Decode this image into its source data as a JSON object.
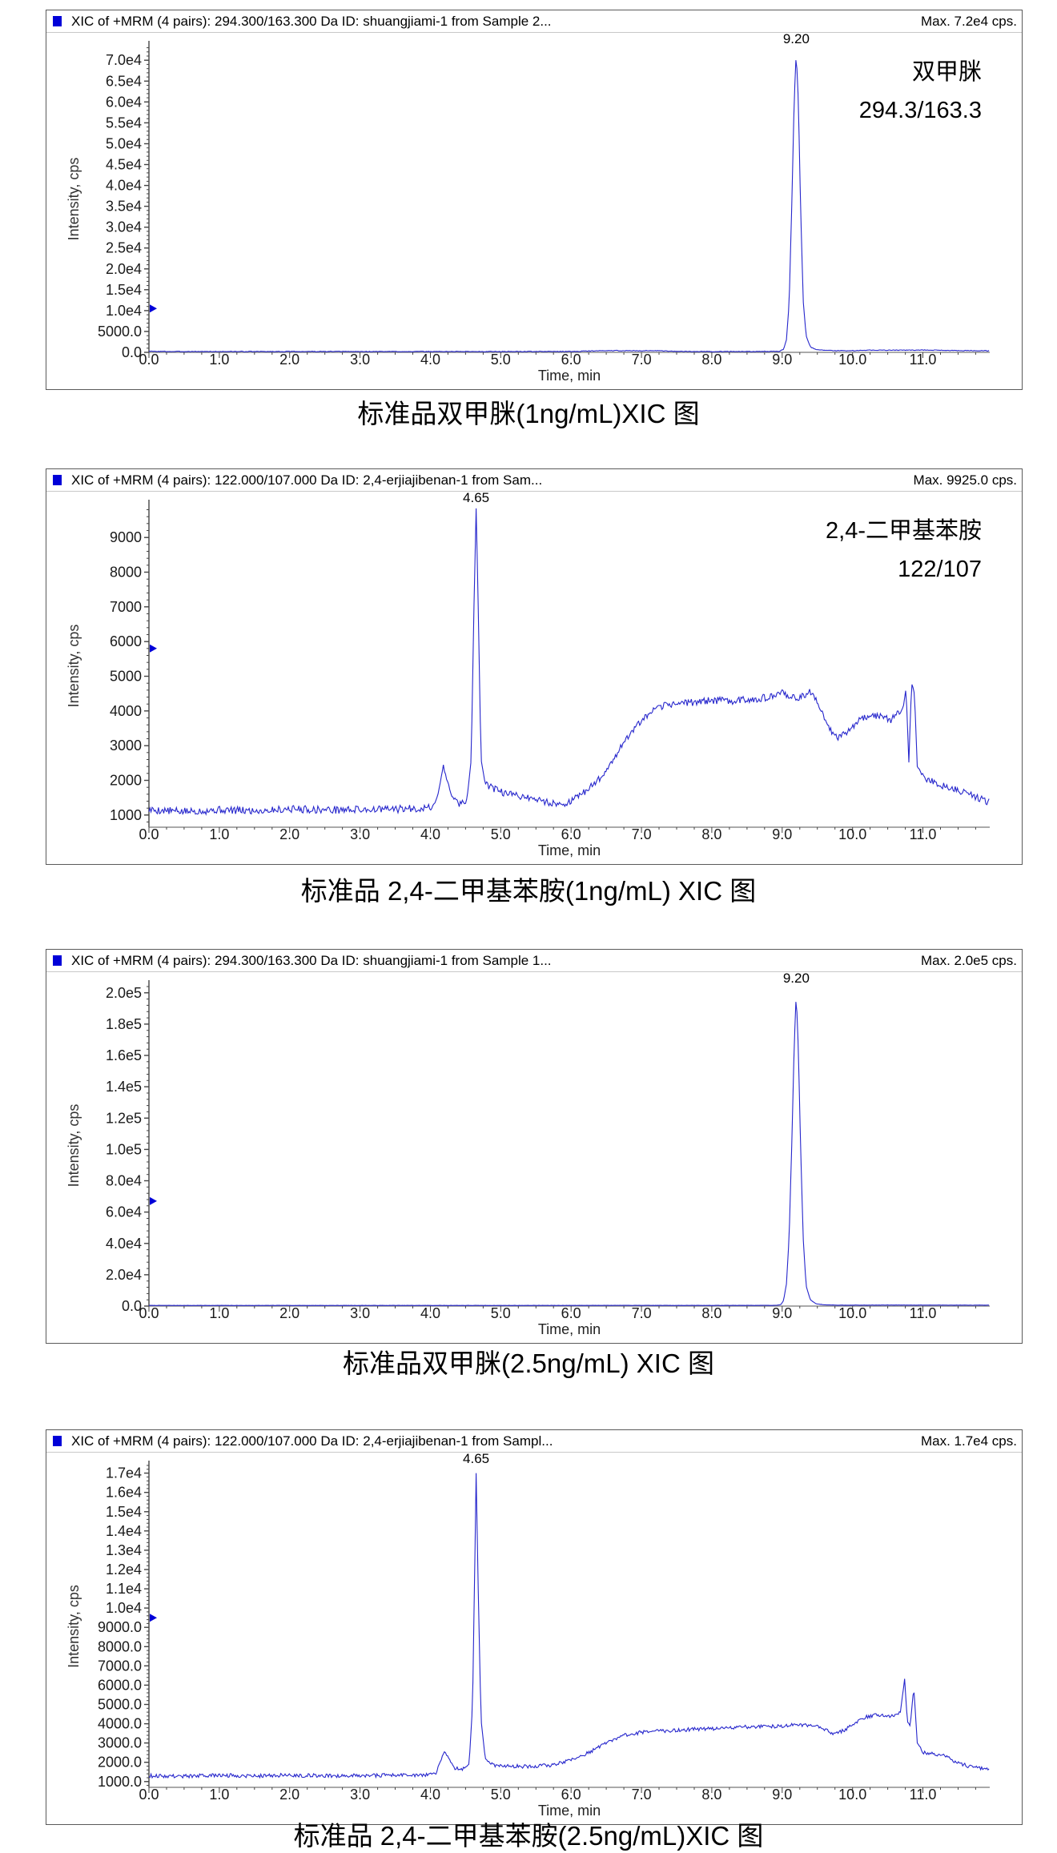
{
  "chart_data": [
    {
      "type": "line",
      "title": "XIC of +MRM (4 pairs): 294.300/163.300 Da ID: shuangjiami-1 from Sample 2...",
      "max_label": "Max. 7.2e4 cps.",
      "caption": "标准品双甲脒(1ng/mL)XIC 图",
      "annotation_lines": [
        "双甲脒",
        "294.3/163.3"
      ],
      "peak": {
        "label": "9.20",
        "time": 9.2,
        "intensity": 72000
      },
      "xlabel": "Time, min",
      "ylabel": "Intensity, cps",
      "xlim": [
        0,
        11.95
      ],
      "ylim": [
        0,
        73500
      ],
      "x_ticks": [
        {
          "v": 0,
          "label": "0.0"
        },
        {
          "v": 1,
          "label": "1.0"
        },
        {
          "v": 2,
          "label": "2.0"
        },
        {
          "v": 3,
          "label": "3.0"
        },
        {
          "v": 4,
          "label": "4.0"
        },
        {
          "v": 5,
          "label": "5.0"
        },
        {
          "v": 6,
          "label": "6.0"
        },
        {
          "v": 7,
          "label": "7.0"
        },
        {
          "v": 8,
          "label": "8.0"
        },
        {
          "v": 9,
          "label": "9.0"
        },
        {
          "v": 10,
          "label": "10.0"
        },
        {
          "v": 11,
          "label": "11.0"
        }
      ],
      "y_ticks": [
        {
          "v": 0,
          "label": "0.0"
        },
        {
          "v": 5000,
          "label": "5000.0"
        },
        {
          "v": 10000,
          "label": "1.0e4"
        },
        {
          "v": 15000,
          "label": "1.5e4"
        },
        {
          "v": 20000,
          "label": "2.0e4"
        },
        {
          "v": 25000,
          "label": "2.5e4"
        },
        {
          "v": 30000,
          "label": "3.0e4"
        },
        {
          "v": 35000,
          "label": "3.5e4"
        },
        {
          "v": 40000,
          "label": "4.0e4"
        },
        {
          "v": 45000,
          "label": "4.5e4"
        },
        {
          "v": 50000,
          "label": "5.0e4"
        },
        {
          "v": 55000,
          "label": "5.5e4"
        },
        {
          "v": 60000,
          "label": "6.0e4"
        },
        {
          "v": 65000,
          "label": "6.5e4"
        },
        {
          "v": 70000,
          "label": "7.0e4"
        }
      ],
      "marker_intensity": 10500,
      "trace_color": "#2626cc",
      "noise_cps": 80,
      "seed": 3,
      "keypoints": [
        [
          0,
          250
        ],
        [
          0.3,
          200
        ],
        [
          1,
          200
        ],
        [
          2,
          200
        ],
        [
          3,
          200
        ],
        [
          4,
          200
        ],
        [
          5,
          200
        ],
        [
          6,
          220
        ],
        [
          6.3,
          350
        ],
        [
          6.6,
          420
        ],
        [
          6.9,
          380
        ],
        [
          7.2,
          420
        ],
        [
          7.4,
          250
        ],
        [
          8,
          200
        ],
        [
          8.6,
          200
        ],
        [
          8.95,
          250
        ],
        [
          9.02,
          700
        ],
        [
          9.06,
          3000
        ],
        [
          9.1,
          12000
        ],
        [
          9.14,
          38000
        ],
        [
          9.17,
          60000
        ],
        [
          9.2,
          72000
        ],
        [
          9.23,
          60000
        ],
        [
          9.26,
          36000
        ],
        [
          9.3,
          12000
        ],
        [
          9.34,
          4000
        ],
        [
          9.4,
          1300
        ],
        [
          9.5,
          600
        ],
        [
          9.7,
          420
        ],
        [
          10,
          400
        ],
        [
          10.3,
          550
        ],
        [
          10.6,
          500
        ],
        [
          11,
          550
        ],
        [
          11.3,
          480
        ],
        [
          11.6,
          420
        ],
        [
          11.9,
          380
        ]
      ]
    },
    {
      "type": "line",
      "title": "XIC of +MRM (4 pairs): 122.000/107.000 Da ID: 2,4-erjiajibenan-1 from Sam...",
      "max_label": "Max. 9925.0 cps.",
      "caption": "标准品 2,4-二甲基苯胺(1ng/mL) XIC 图",
      "annotation_lines": [
        "2,4-二甲基苯胺",
        "122/107"
      ],
      "peak": {
        "label": "4.65",
        "time": 4.65,
        "intensity": 9925
      },
      "xlabel": "Time, min",
      "ylabel": "Intensity, cps",
      "xlim": [
        0,
        11.95
      ],
      "ylim": [
        650,
        9950
      ],
      "x_ticks": [
        {
          "v": 0,
          "label": "0.0"
        },
        {
          "v": 1,
          "label": "1.0"
        },
        {
          "v": 2,
          "label": "2.0"
        },
        {
          "v": 3,
          "label": "3.0"
        },
        {
          "v": 4,
          "label": "4.0"
        },
        {
          "v": 5,
          "label": "5.0"
        },
        {
          "v": 6,
          "label": "6.0"
        },
        {
          "v": 7,
          "label": "7.0"
        },
        {
          "v": 8,
          "label": "8.0"
        },
        {
          "v": 9,
          "label": "9.0"
        },
        {
          "v": 10,
          "label": "10.0"
        },
        {
          "v": 11,
          "label": "11.0"
        }
      ],
      "y_ticks": [
        {
          "v": 1000,
          "label": "1000"
        },
        {
          "v": 2000,
          "label": "2000"
        },
        {
          "v": 3000,
          "label": "3000"
        },
        {
          "v": 4000,
          "label": "4000"
        },
        {
          "v": 5000,
          "label": "5000"
        },
        {
          "v": 6000,
          "label": "6000"
        },
        {
          "v": 7000,
          "label": "7000"
        },
        {
          "v": 8000,
          "label": "8000"
        },
        {
          "v": 9000,
          "label": "9000"
        }
      ],
      "marker_intensity": 5800,
      "trace_color": "#2626cc",
      "noise_cps": 110,
      "seed": 5,
      "keypoints": [
        [
          0,
          1150
        ],
        [
          0.5,
          1100
        ],
        [
          1,
          1150
        ],
        [
          1.5,
          1120
        ],
        [
          2,
          1180
        ],
        [
          2.5,
          1150
        ],
        [
          3,
          1160
        ],
        [
          3.5,
          1170
        ],
        [
          3.9,
          1200
        ],
        [
          4.05,
          1250
        ],
        [
          4.12,
          1700
        ],
        [
          4.18,
          2400
        ],
        [
          4.25,
          1900
        ],
        [
          4.32,
          1500
        ],
        [
          4.42,
          1300
        ],
        [
          4.52,
          1450
        ],
        [
          4.58,
          2600
        ],
        [
          4.62,
          7000
        ],
        [
          4.65,
          9925
        ],
        [
          4.68,
          7000
        ],
        [
          4.72,
          2600
        ],
        [
          4.78,
          1900
        ],
        [
          4.9,
          1750
        ],
        [
          5.1,
          1600
        ],
        [
          5.3,
          1550
        ],
        [
          5.6,
          1400
        ],
        [
          5.85,
          1300
        ],
        [
          6,
          1400
        ],
        [
          6.15,
          1600
        ],
        [
          6.3,
          1850
        ],
        [
          6.45,
          2150
        ],
        [
          6.6,
          2600
        ],
        [
          6.75,
          3100
        ],
        [
          6.9,
          3500
        ],
        [
          7.05,
          3800
        ],
        [
          7.2,
          4050
        ],
        [
          7.4,
          4200
        ],
        [
          7.7,
          4250
        ],
        [
          8,
          4300
        ],
        [
          8.3,
          4300
        ],
        [
          8.6,
          4350
        ],
        [
          8.9,
          4400
        ],
        [
          9,
          4600
        ],
        [
          9.1,
          4350
        ],
        [
          9.25,
          4400
        ],
        [
          9.4,
          4550
        ],
        [
          9.5,
          4250
        ],
        [
          9.6,
          3800
        ],
        [
          9.7,
          3400
        ],
        [
          9.8,
          3250
        ],
        [
          9.95,
          3450
        ],
        [
          10.1,
          3750
        ],
        [
          10.25,
          3900
        ],
        [
          10.4,
          3850
        ],
        [
          10.55,
          3750
        ],
        [
          10.65,
          3950
        ],
        [
          10.72,
          4100
        ],
        [
          10.76,
          4650
        ],
        [
          10.8,
          2600
        ],
        [
          10.84,
          4800
        ],
        [
          10.88,
          4500
        ],
        [
          10.92,
          2400
        ],
        [
          11,
          2100
        ],
        [
          11.15,
          1950
        ],
        [
          11.35,
          1800
        ],
        [
          11.6,
          1650
        ],
        [
          11.9,
          1400
        ]
      ]
    },
    {
      "type": "line",
      "title": "XIC of +MRM (4 pairs): 294.300/163.300 Da ID: shuangjiami-1 from Sample 1...",
      "max_label": "Max. 2.0e5 cps.",
      "caption": "标准品双甲脒(2.5ng/mL) XIC 图",
      "annotation_lines": [],
      "peak": {
        "label": "9.20",
        "time": 9.2,
        "intensity": 200000
      },
      "xlabel": "Time, min",
      "ylabel": "Intensity, cps",
      "xlim": [
        0,
        11.95
      ],
      "ylim": [
        0,
        205000
      ],
      "x_ticks": [
        {
          "v": 0,
          "label": "0.0"
        },
        {
          "v": 1,
          "label": "1.0"
        },
        {
          "v": 2,
          "label": "2.0"
        },
        {
          "v": 3,
          "label": "3.0"
        },
        {
          "v": 4,
          "label": "4.0"
        },
        {
          "v": 5,
          "label": "5.0"
        },
        {
          "v": 6,
          "label": "6.0"
        },
        {
          "v": 7,
          "label": "7.0"
        },
        {
          "v": 8,
          "label": "8.0"
        },
        {
          "v": 9,
          "label": "9.0"
        },
        {
          "v": 10,
          "label": "10.0"
        },
        {
          "v": 11,
          "label": "11.0"
        }
      ],
      "y_ticks": [
        {
          "v": 0,
          "label": "0.0"
        },
        {
          "v": 20000,
          "label": "2.0e4"
        },
        {
          "v": 40000,
          "label": "4.0e4"
        },
        {
          "v": 60000,
          "label": "6.0e4"
        },
        {
          "v": 80000,
          "label": "8.0e4"
        },
        {
          "v": 100000,
          "label": "1.0e5"
        },
        {
          "v": 120000,
          "label": "1.2e5"
        },
        {
          "v": 140000,
          "label": "1.4e5"
        },
        {
          "v": 160000,
          "label": "1.6e5"
        },
        {
          "v": 180000,
          "label": "1.8e5"
        },
        {
          "v": 200000,
          "label": "2.0e5"
        }
      ],
      "marker_intensity": 67000,
      "trace_color": "#2626cc",
      "noise_cps": 60,
      "seed": 7,
      "keypoints": [
        [
          0,
          400
        ],
        [
          1,
          400
        ],
        [
          2,
          400
        ],
        [
          3,
          400
        ],
        [
          4,
          400
        ],
        [
          5,
          400
        ],
        [
          6,
          420
        ],
        [
          6.5,
          450
        ],
        [
          7,
          430
        ],
        [
          8,
          420
        ],
        [
          8.9,
          450
        ],
        [
          8.98,
          900
        ],
        [
          9.02,
          3500
        ],
        [
          9.06,
          14000
        ],
        [
          9.1,
          45000
        ],
        [
          9.14,
          110000
        ],
        [
          9.17,
          165000
        ],
        [
          9.2,
          200000
        ],
        [
          9.23,
          163000
        ],
        [
          9.26,
          105000
        ],
        [
          9.3,
          42000
        ],
        [
          9.34,
          13000
        ],
        [
          9.4,
          4000
        ],
        [
          9.48,
          1500
        ],
        [
          9.6,
          800
        ],
        [
          9.8,
          600
        ],
        [
          10.2,
          600
        ],
        [
          10.6,
          650
        ],
        [
          11,
          620
        ],
        [
          11.5,
          600
        ],
        [
          11.9,
          580
        ]
      ]
    },
    {
      "type": "line",
      "title": "XIC of +MRM (4 pairs): 122.000/107.000 Da ID: 2,4-erjiajibenan-1 from Sampl...",
      "max_label": "Max. 1.7e4 cps.",
      "caption": "标准品 2,4-二甲基苯胺(2.5ng/mL)XIC 图",
      "annotation_lines": [],
      "peak": {
        "label": "4.65",
        "time": 4.65,
        "intensity": 17000
      },
      "xlabel": "Time, min",
      "ylabel": "Intensity, cps",
      "xlim": [
        0,
        11.95
      ],
      "ylim": [
        700,
        17400
      ],
      "x_ticks": [
        {
          "v": 0,
          "label": "0.0"
        },
        {
          "v": 1,
          "label": "1.0"
        },
        {
          "v": 2,
          "label": "2.0"
        },
        {
          "v": 3,
          "label": "3.0"
        },
        {
          "v": 4,
          "label": "4.0"
        },
        {
          "v": 5,
          "label": "5.0"
        },
        {
          "v": 6,
          "label": "6.0"
        },
        {
          "v": 7,
          "label": "7.0"
        },
        {
          "v": 8,
          "label": "8.0"
        },
        {
          "v": 9,
          "label": "9.0"
        },
        {
          "v": 10,
          "label": "10.0"
        },
        {
          "v": 11,
          "label": "11.0"
        }
      ],
      "y_ticks": [
        {
          "v": 1000,
          "label": "1000.0"
        },
        {
          "v": 2000,
          "label": "2000.0"
        },
        {
          "v": 3000,
          "label": "3000.0"
        },
        {
          "v": 4000,
          "label": "4000.0"
        },
        {
          "v": 5000,
          "label": "5000.0"
        },
        {
          "v": 6000,
          "label": "6000.0"
        },
        {
          "v": 7000,
          "label": "7000.0"
        },
        {
          "v": 8000,
          "label": "8000.0"
        },
        {
          "v": 9000,
          "label": "9000.0"
        },
        {
          "v": 10000,
          "label": "1.0e4"
        },
        {
          "v": 11000,
          "label": "1.1e4"
        },
        {
          "v": 12000,
          "label": "1.2e4"
        },
        {
          "v": 13000,
          "label": "1.3e4"
        },
        {
          "v": 14000,
          "label": "1.4e4"
        },
        {
          "v": 15000,
          "label": "1.5e4"
        },
        {
          "v": 16000,
          "label": "1.6e4"
        },
        {
          "v": 17000,
          "label": "1.7e4"
        }
      ],
      "marker_intensity": 9500,
      "trace_color": "#2626cc",
      "noise_cps": 100,
      "seed": 9,
      "keypoints": [
        [
          0,
          1300
        ],
        [
          0.5,
          1280
        ],
        [
          1,
          1320
        ],
        [
          1.5,
          1300
        ],
        [
          2,
          1330
        ],
        [
          2.5,
          1300
        ],
        [
          3,
          1320
        ],
        [
          3.5,
          1330
        ],
        [
          3.95,
          1350
        ],
        [
          4.08,
          1450
        ],
        [
          4.15,
          2100
        ],
        [
          4.2,
          2600
        ],
        [
          4.27,
          2100
        ],
        [
          4.35,
          1700
        ],
        [
          4.45,
          1650
        ],
        [
          4.55,
          1900
        ],
        [
          4.6,
          5000
        ],
        [
          4.63,
          12000
        ],
        [
          4.65,
          17000
        ],
        [
          4.68,
          11000
        ],
        [
          4.72,
          4200
        ],
        [
          4.78,
          2200
        ],
        [
          4.9,
          1850
        ],
        [
          5.1,
          1800
        ],
        [
          5.4,
          1780
        ],
        [
          5.7,
          1850
        ],
        [
          5.95,
          2050
        ],
        [
          6.1,
          2250
        ],
        [
          6.3,
          2600
        ],
        [
          6.5,
          3000
        ],
        [
          6.7,
          3350
        ],
        [
          6.9,
          3500
        ],
        [
          7.1,
          3600
        ],
        [
          7.4,
          3650
        ],
        [
          7.7,
          3700
        ],
        [
          8,
          3750
        ],
        [
          8.3,
          3800
        ],
        [
          8.6,
          3850
        ],
        [
          8.9,
          3850
        ],
        [
          9.2,
          3950
        ],
        [
          9.45,
          3900
        ],
        [
          9.6,
          3700
        ],
        [
          9.75,
          3450
        ],
        [
          9.9,
          3700
        ],
        [
          10.05,
          4100
        ],
        [
          10.2,
          4350
        ],
        [
          10.35,
          4450
        ],
        [
          10.5,
          4350
        ],
        [
          10.6,
          4450
        ],
        [
          10.68,
          4600
        ],
        [
          10.74,
          6300
        ],
        [
          10.78,
          4100
        ],
        [
          10.82,
          3900
        ],
        [
          10.87,
          5900
        ],
        [
          10.92,
          3000
        ],
        [
          11,
          2500
        ],
        [
          11.15,
          2450
        ],
        [
          11.3,
          2350
        ],
        [
          11.5,
          1950
        ],
        [
          11.7,
          1750
        ],
        [
          11.9,
          1650
        ]
      ]
    }
  ]
}
